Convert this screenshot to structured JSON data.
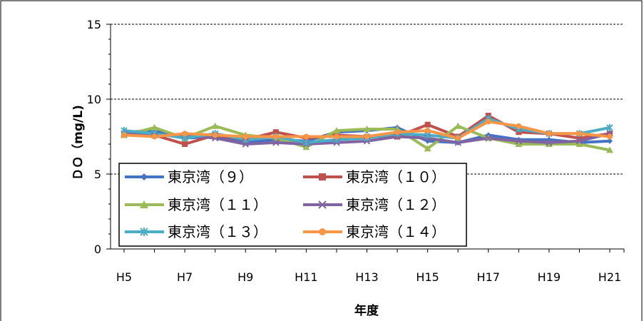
{
  "chart_data": {
    "type": "line",
    "xlabel": "年度",
    "ylabel": "ＤＯ（mg/L)",
    "ylim": [
      0,
      15
    ],
    "yticks": [
      0,
      5,
      10,
      15
    ],
    "grid": "dashed horizontal at 5, 10, 15",
    "legend_position": "bottom-left inside plot, 2 columns",
    "x": [
      "H5",
      "H6",
      "H7",
      "H8",
      "H9",
      "H10",
      "H11",
      "H12",
      "H13",
      "H14",
      "H15",
      "H16",
      "H17",
      "H18",
      "H19",
      "H20",
      "H21"
    ],
    "x_tick_labels": [
      "H5",
      "H7",
      "H9",
      "H11",
      "H13",
      "H15",
      "H17",
      "H19",
      "H21"
    ],
    "series": [
      {
        "name": "東京湾（９）",
        "color": "#4472C4",
        "marker": "diamond",
        "values": [
          7.8,
          7.9,
          7.4,
          7.5,
          7.1,
          7.3,
          7.2,
          7.8,
          7.9,
          8.1,
          7.2,
          7.1,
          7.6,
          7.3,
          7.3,
          7.1,
          7.2
        ]
      },
      {
        "name": "東京湾（１０）",
        "color": "#C0504D",
        "marker": "square",
        "values": [
          7.6,
          7.6,
          7.0,
          7.6,
          7.3,
          7.8,
          7.4,
          7.6,
          7.5,
          7.5,
          8.3,
          7.5,
          8.9,
          7.8,
          7.7,
          7.4,
          7.7
        ]
      },
      {
        "name": "東京湾（１１）",
        "color": "#9BBB59",
        "marker": "triangle",
        "values": [
          7.6,
          8.1,
          7.4,
          8.2,
          7.6,
          7.4,
          6.8,
          7.9,
          8.0,
          8.0,
          6.7,
          8.2,
          7.4,
          7.0,
          7.0,
          7.0,
          6.6
        ]
      },
      {
        "name": "東京湾（１２）",
        "color": "#8064A2",
        "marker": "x",
        "values": [
          7.7,
          7.6,
          7.6,
          7.4,
          7.0,
          7.1,
          7.0,
          7.1,
          7.2,
          7.5,
          7.4,
          7.1,
          7.4,
          7.2,
          7.1,
          7.2,
          7.7
        ]
      },
      {
        "name": "東京湾（１３）",
        "color": "#4BACC6",
        "marker": "star",
        "values": [
          7.9,
          7.7,
          7.4,
          7.7,
          7.3,
          7.5,
          7.1,
          7.3,
          7.4,
          7.7,
          7.6,
          7.4,
          8.7,
          8.0,
          7.7,
          7.7,
          8.1
        ]
      },
      {
        "name": "東京湾（１４）",
        "color": "#F79646",
        "marker": "circle",
        "values": [
          7.6,
          7.5,
          7.7,
          7.6,
          7.5,
          7.5,
          7.5,
          7.5,
          7.5,
          7.8,
          7.9,
          7.4,
          8.5,
          8.2,
          7.7,
          7.7,
          7.5
        ]
      }
    ]
  }
}
